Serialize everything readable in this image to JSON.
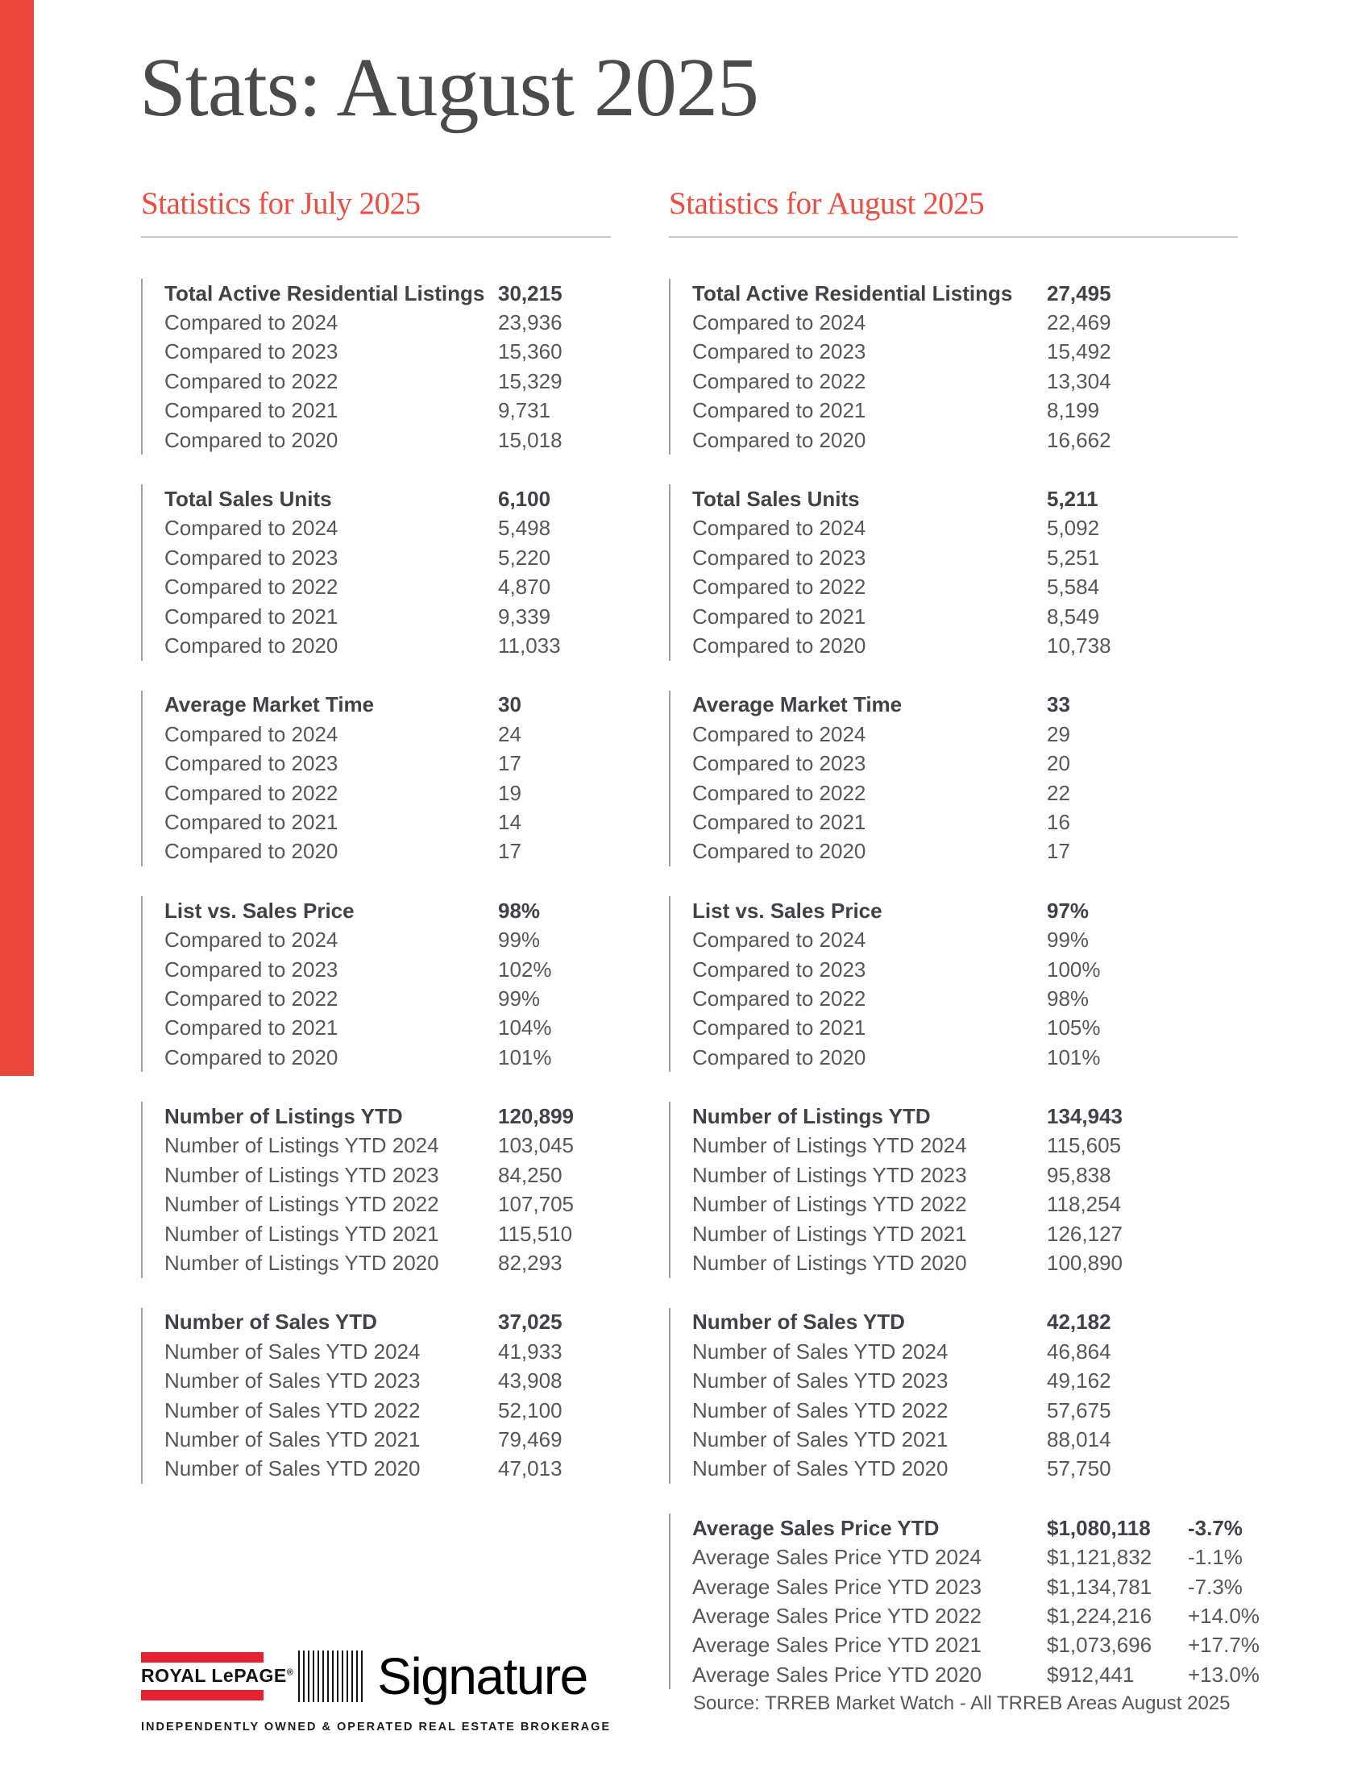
{
  "title": "Stats: August 2025",
  "colors": {
    "accent_red": "#ea463c",
    "heading_red": "#ef4b41",
    "logo_red": "#e52330"
  },
  "columns": [
    {
      "heading": "Statistics for July 2025",
      "blocks": [
        {
          "rows": [
            {
              "label": "Total Active Residential Listings",
              "value": "30,215"
            },
            {
              "label": "Compared to 2024",
              "value": "23,936"
            },
            {
              "label": "Compared to 2023",
              "value": "15,360"
            },
            {
              "label": "Compared to 2022",
              "value": "15,329"
            },
            {
              "label": "Compared to 2021",
              "value": "9,731"
            },
            {
              "label": "Compared to 2020",
              "value": "15,018"
            }
          ]
        },
        {
          "rows": [
            {
              "label": "Total Sales Units",
              "value": "6,100"
            },
            {
              "label": "Compared to 2024",
              "value": "5,498"
            },
            {
              "label": "Compared to 2023",
              "value": "5,220"
            },
            {
              "label": "Compared to 2022",
              "value": "4,870"
            },
            {
              "label": "Compared to 2021",
              "value": "9,339"
            },
            {
              "label": "Compared to 2020",
              "value": "11,033"
            }
          ]
        },
        {
          "rows": [
            {
              "label": "Average Market Time",
              "value": "30"
            },
            {
              "label": "Compared to 2024",
              "value": "24"
            },
            {
              "label": "Compared to 2023",
              "value": "17"
            },
            {
              "label": "Compared to 2022",
              "value": "19"
            },
            {
              "label": "Compared to 2021",
              "value": "14"
            },
            {
              "label": "Compared to 2020",
              "value": "17"
            }
          ]
        },
        {
          "rows": [
            {
              "label": "List vs. Sales Price",
              "value": "98%"
            },
            {
              "label": "Compared to 2024",
              "value": "99%"
            },
            {
              "label": "Compared to 2023",
              "value": "102%"
            },
            {
              "label": "Compared to 2022",
              "value": "99%"
            },
            {
              "label": "Compared to 2021",
              "value": "104%"
            },
            {
              "label": "Compared to 2020",
              "value": "101%"
            }
          ]
        },
        {
          "rows": [
            {
              "label": "Number of Listings YTD",
              "value": "120,899"
            },
            {
              "label": "Number of Listings YTD 2024",
              "value": "103,045"
            },
            {
              "label": "Number of Listings YTD 2023",
              "value": "84,250"
            },
            {
              "label": "Number of Listings YTD 2022",
              "value": "107,705"
            },
            {
              "label": "Number of Listings YTD 2021",
              "value": "115,510"
            },
            {
              "label": "Number of Listings YTD 2020",
              "value": "82,293"
            }
          ]
        },
        {
          "rows": [
            {
              "label": "Number of Sales YTD",
              "value": "37,025"
            },
            {
              "label": "Number of Sales YTD 2024",
              "value": "41,933"
            },
            {
              "label": "Number of Sales YTD 2023",
              "value": "43,908"
            },
            {
              "label": "Number of Sales YTD 2022",
              "value": "52,100"
            },
            {
              "label": "Number of Sales YTD 2021",
              "value": "79,469"
            },
            {
              "label": "Number of Sales YTD 2020",
              "value": "47,013"
            }
          ]
        }
      ]
    },
    {
      "heading": "Statistics for August 2025",
      "blocks": [
        {
          "rows": [
            {
              "label": "Total Active Residential Listings",
              "value": "27,495"
            },
            {
              "label": "Compared to 2024",
              "value": "22,469"
            },
            {
              "label": "Compared to 2023",
              "value": "15,492"
            },
            {
              "label": "Compared to 2022",
              "value": "13,304"
            },
            {
              "label": "Compared to 2021",
              "value": "8,199"
            },
            {
              "label": "Compared to 2020",
              "value": "16,662"
            }
          ]
        },
        {
          "rows": [
            {
              "label": "Total Sales Units",
              "value": "5,211"
            },
            {
              "label": "Compared to 2024",
              "value": "5,092"
            },
            {
              "label": "Compared to 2023",
              "value": "5,251"
            },
            {
              "label": "Compared to 2022",
              "value": "5,584"
            },
            {
              "label": "Compared to 2021",
              "value": "8,549"
            },
            {
              "label": "Compared to 2020",
              "value": "10,738"
            }
          ]
        },
        {
          "rows": [
            {
              "label": "Average Market Time",
              "value": "33"
            },
            {
              "label": "Compared to 2024",
              "value": "29"
            },
            {
              "label": "Compared to 2023",
              "value": "20"
            },
            {
              "label": "Compared to 2022",
              "value": "22"
            },
            {
              "label": "Compared to 2021",
              "value": "16"
            },
            {
              "label": "Compared to 2020",
              "value": "17"
            }
          ]
        },
        {
          "rows": [
            {
              "label": "List vs. Sales Price",
              "value": "97%"
            },
            {
              "label": "Compared to 2024",
              "value": "99%"
            },
            {
              "label": "Compared to 2023",
              "value": "100%"
            },
            {
              "label": "Compared to 2022",
              "value": "98%"
            },
            {
              "label": "Compared to 2021",
              "value": "105%"
            },
            {
              "label": "Compared to 2020",
              "value": "101%"
            }
          ]
        },
        {
          "rows": [
            {
              "label": "Number of Listings YTD",
              "value": "134,943"
            },
            {
              "label": "Number of Listings YTD 2024",
              "value": "115,605"
            },
            {
              "label": "Number of Listings YTD 2023",
              "value": "95,838"
            },
            {
              "label": "Number of Listings YTD 2022",
              "value": "118,254"
            },
            {
              "label": "Number of Listings YTD 2021",
              "value": "126,127"
            },
            {
              "label": "Number of Listings YTD 2020",
              "value": "100,890"
            }
          ]
        },
        {
          "rows": [
            {
              "label": "Number of Sales YTD",
              "value": "42,182"
            },
            {
              "label": "Number of Sales YTD 2024",
              "value": "46,864"
            },
            {
              "label": "Number of Sales YTD 2023",
              "value": "49,162"
            },
            {
              "label": "Number of Sales YTD 2022",
              "value": "57,675"
            },
            {
              "label": "Number of Sales YTD 2021",
              "value": "88,014"
            },
            {
              "label": "Number of Sales YTD 2020",
              "value": "57,750"
            }
          ]
        },
        {
          "rows": [
            {
              "label": "Average Sales Price YTD",
              "value": "$1,080,118",
              "pct": "-3.7%"
            },
            {
              "label": "Average Sales Price YTD 2024",
              "value": "$1,121,832",
              "pct": "-1.1%"
            },
            {
              "label": "Average Sales Price YTD 2023",
              "value": "$1,134,781",
              "pct": "-7.3%"
            },
            {
              "label": "Average Sales Price YTD 2022",
              "value": "$1,224,216",
              "pct": "+14.0%"
            },
            {
              "label": "Average Sales Price YTD 2021",
              "value": "$1,073,696",
              "pct": "+17.7%"
            },
            {
              "label": "Average Sales Price YTD 2020",
              "value": "$912,441",
              "pct": "+13.0%"
            }
          ]
        }
      ]
    }
  ],
  "logo": {
    "brand": "ROYAL LePAGE",
    "registered": "®",
    "name": "Signature",
    "tagline": "INDEPENDENTLY OWNED & OPERATED REAL ESTATE BROKERAGE"
  },
  "source": "Source: TRREB Market Watch - All TRREB Areas August 2025"
}
